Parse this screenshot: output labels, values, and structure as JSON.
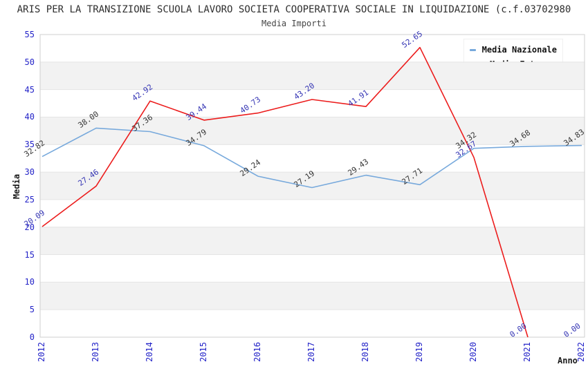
{
  "chart_data": {
    "type": "line",
    "title": "ARIS PER LA TRANSIZIONE SCUOLA LAVORO SOCIETA COOPERATIVA SOCIALE IN LIQUIDAZIONE (c.f.03702980",
    "subtitle": "Media Importi",
    "xlabel": "Anno",
    "ylabel": "Media",
    "x": [
      2012,
      2013,
      2014,
      2015,
      2016,
      2017,
      2018,
      2019,
      2020,
      2021,
      2022
    ],
    "ylim": [
      0,
      55
    ],
    "yticks": [
      0,
      5,
      10,
      15,
      20,
      25,
      30,
      35,
      40,
      45,
      50,
      55
    ],
    "grid": "horizontal-bands-alternating",
    "legend_position": "top-right",
    "series": [
      {
        "name": "Media Nazionale",
        "color": "#77a9dc",
        "label_color": "#333333",
        "values": [
          32.82,
          38.0,
          37.36,
          34.79,
          29.24,
          27.19,
          29.43,
          27.71,
          34.32,
          34.68,
          34.83
        ]
      },
      {
        "name": "Media Ente",
        "color": "#ec1c1c",
        "label_color": "#3434b4",
        "values": [
          20.09,
          27.46,
          42.92,
          39.44,
          40.73,
          43.2,
          41.91,
          52.65,
          32.67,
          0.0,
          0.0
        ],
        "line_until_index": 9
      }
    ],
    "colors": {
      "tick_label": "#2323c8",
      "band_gray": "#f2f2f2",
      "gridline": "#e4e4e4",
      "plot_border": "#cfcfcf"
    }
  }
}
